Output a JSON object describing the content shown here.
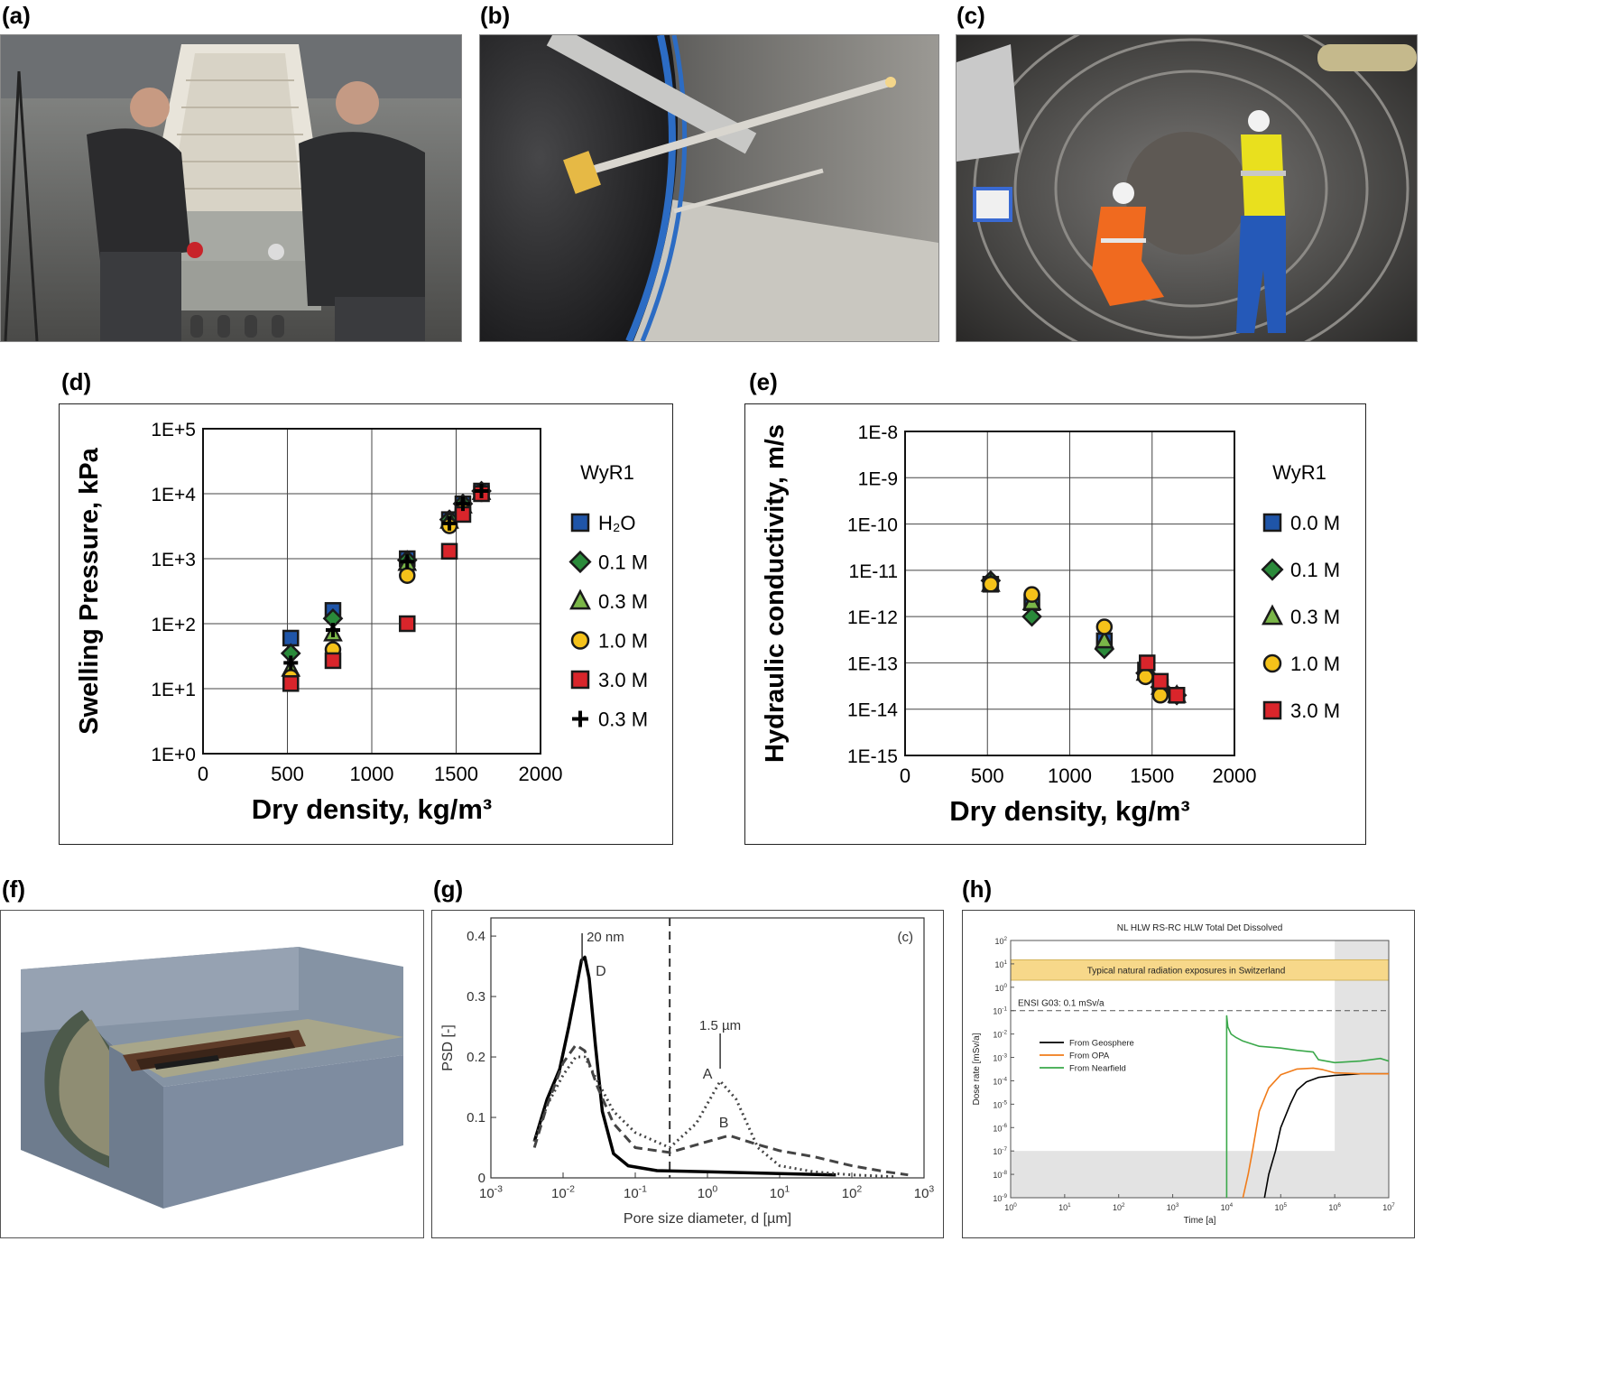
{
  "panels": {
    "a": "(a)",
    "b": "(b)",
    "c": "(c)",
    "d": "(d)",
    "e": "(e)",
    "f": "(f)",
    "g": "(g)",
    "h": "(h)"
  },
  "colors": {
    "blue": "#1f55a8",
    "green": "#2a8a3a",
    "olive": "#7ab648",
    "yellow": "#f5c21a",
    "red": "#d9252b",
    "black": "#000000",
    "orange": "#f07c1a",
    "nf_green": "#3aa84a",
    "band": "#f7d88a",
    "shade": "#e3e3e3"
  },
  "chart_data": [
    {
      "panel": "d",
      "type": "scatter",
      "xlabel": "Dry density, kg/m³",
      "ylabel": "Swelling Pressure, kPa",
      "xlim": [
        0,
        2000
      ],
      "ylim": [
        1,
        100000
      ],
      "yscale": "log",
      "xticks": [
        "0",
        "500",
        "1000",
        "1500",
        "2000"
      ],
      "yticks": [
        "1E+0",
        "1E+1",
        "1E+2",
        "1E+3",
        "1E+4",
        "1E+5"
      ],
      "grid": true,
      "legend_title": "WyR1",
      "legend_position": "right",
      "series": [
        {
          "name": "H₂O",
          "marker": "square",
          "color": "#1f55a8",
          "x": [
            520,
            770,
            1210,
            1460,
            1540,
            1650
          ],
          "y": [
            60,
            160,
            1000,
            4000,
            7000,
            11000
          ]
        },
        {
          "name": "0.1 M",
          "marker": "diamond",
          "color": "#2a8a3a",
          "x": [
            520,
            770,
            1210,
            1460,
            1540,
            1650
          ],
          "y": [
            35,
            120,
            950,
            4000,
            7000,
            11000
          ]
        },
        {
          "name": "0.3 M",
          "marker": "triangle",
          "color": "#7ab648",
          "x": [
            520,
            770,
            1210,
            1460,
            1540,
            1650
          ],
          "y": [
            20,
            70,
            850,
            3800,
            6500,
            10500
          ]
        },
        {
          "name": "1.0 M",
          "marker": "circle",
          "color": "#f5c21a",
          "x": [
            520,
            770,
            1210,
            1460,
            1540,
            1650
          ],
          "y": [
            15,
            40,
            550,
            3200,
            5500,
            10000
          ]
        },
        {
          "name": "3.0 M",
          "marker": "square",
          "color": "#d9252b",
          "x": [
            520,
            770,
            1210,
            1460,
            1540,
            1650
          ],
          "y": [
            12,
            27,
            100,
            1300,
            4800,
            10000
          ]
        },
        {
          "name": "0.3 M",
          "marker": "plus",
          "color": "#000000",
          "x": [
            520,
            770,
            1210,
            1460,
            1540,
            1650
          ],
          "y": [
            25,
            80,
            900,
            3500,
            7000,
            11000
          ]
        }
      ]
    },
    {
      "panel": "e",
      "type": "scatter",
      "xlabel": "Dry density, kg/m³",
      "ylabel": "Hydraulic conductivity, m/s",
      "xlim": [
        0,
        2000
      ],
      "ylim": [
        1e-15,
        1e-08
      ],
      "yscale": "log",
      "xticks": [
        "0",
        "500",
        "1000",
        "1500",
        "2000"
      ],
      "yticks": [
        "1E-8",
        "1E-9",
        "1E-10",
        "1E-11",
        "1E-12",
        "1E-13",
        "1E-14",
        "1E-15"
      ],
      "grid": true,
      "legend_title": "WyR1",
      "legend_position": "right",
      "series": [
        {
          "name": "0.0 M",
          "marker": "square",
          "color": "#1f55a8",
          "x": [
            520,
            770,
            1210,
            1460,
            1550,
            1650
          ],
          "y": [
            5e-12,
            2e-12,
            3e-13,
            7e-14,
            3e-14,
            2e-14
          ]
        },
        {
          "name": "0.1 M",
          "marker": "diamond",
          "color": "#2a8a3a",
          "x": [
            520,
            770,
            1210,
            1460,
            1550,
            1650
          ],
          "y": [
            6e-12,
            1e-12,
            2e-13,
            6e-14,
            3e-14,
            2e-14
          ]
        },
        {
          "name": "0.3 M",
          "marker": "triangle",
          "color": "#7ab648",
          "x": [
            520,
            770,
            1210,
            1460,
            1550,
            1650
          ],
          "y": [
            5e-12,
            2e-12,
            3e-13,
            6e-14,
            3e-14,
            2e-14
          ]
        },
        {
          "name": "1.0 M",
          "marker": "circle",
          "color": "#f5c21a",
          "x": [
            520,
            770,
            1210,
            1460,
            1550,
            1650
          ],
          "y": [
            5e-12,
            3e-12,
            6e-13,
            5e-14,
            2e-14,
            2e-14
          ]
        },
        {
          "name": "3.0 M",
          "marker": "square",
          "color": "#d9252b",
          "x": [
            1470,
            1550,
            1650
          ],
          "y": [
            1e-13,
            4e-14,
            2e-14
          ]
        }
      ]
    },
    {
      "panel": "g",
      "type": "line",
      "xlabel": "Pore size diameter, d [µm]",
      "ylabel": "PSD [-]",
      "xscale": "log",
      "xlim": [
        0.001,
        1000
      ],
      "ylim": [
        0,
        0.43
      ],
      "xticks_exp": [
        "-3",
        "-2",
        "-1",
        "0",
        "1",
        "2",
        "3"
      ],
      "yticks": [
        "0",
        "0.1",
        "0.2",
        "0.3",
        "0.4"
      ],
      "corner_label": "(c)",
      "annotations": [
        "20 nm",
        "1.5 µm",
        "D",
        "A",
        "B"
      ],
      "threshold_x": 0.3,
      "series": [
        {
          "name": "D",
          "style": "solid",
          "x": [
            0.004,
            0.006,
            0.009,
            0.012,
            0.015,
            0.018,
            0.02,
            0.023,
            0.028,
            0.035,
            0.05,
            0.08,
            0.2,
            1,
            10,
            60
          ],
          "y": [
            0.06,
            0.13,
            0.18,
            0.25,
            0.31,
            0.36,
            0.365,
            0.33,
            0.22,
            0.11,
            0.04,
            0.02,
            0.012,
            0.01,
            0.007,
            0.005
          ]
        },
        {
          "name": "A",
          "style": "dotted",
          "x": [
            0.004,
            0.006,
            0.01,
            0.015,
            0.02,
            0.03,
            0.05,
            0.1,
            0.3,
            0.7,
            1.5,
            2.5,
            5,
            10,
            30,
            100,
            400
          ],
          "y": [
            0.06,
            0.12,
            0.17,
            0.2,
            0.2,
            0.16,
            0.11,
            0.075,
            0.05,
            0.09,
            0.16,
            0.13,
            0.05,
            0.02,
            0.01,
            0.005,
            0.002
          ]
        },
        {
          "name": "B",
          "style": "dashed",
          "x": [
            0.004,
            0.006,
            0.01,
            0.015,
            0.02,
            0.03,
            0.05,
            0.1,
            0.3,
            1,
            2,
            5,
            10,
            30,
            100,
            300,
            600
          ],
          "y": [
            0.05,
            0.12,
            0.19,
            0.22,
            0.21,
            0.15,
            0.09,
            0.05,
            0.042,
            0.06,
            0.07,
            0.055,
            0.045,
            0.035,
            0.02,
            0.01,
            0.005
          ]
        }
      ]
    },
    {
      "panel": "h",
      "type": "line",
      "title": "NL HLW RS-RC HLW Total Det Dissolved",
      "xlabel": "Time [a]",
      "ylabel": "Dose rate [mSv/a]",
      "xscale": "log",
      "yscale": "log",
      "xlim": [
        1,
        10000000
      ],
      "ylim": [
        1e-09,
        100
      ],
      "xticks_exp": [
        "0",
        "1",
        "2",
        "3",
        "4",
        "5",
        "6",
        "7"
      ],
      "yticks_exp": [
        "2",
        "1",
        "0",
        "-1",
        "-2",
        "-3",
        "-4",
        "-5",
        "-6",
        "-7",
        "-8",
        "-9"
      ],
      "band_label": "Typical natural radiation exposures in Switzerland",
      "band_range": [
        2,
        15
      ],
      "limit_label": "ENSI G03: 0.1 mSv/a",
      "limit_value": 0.1,
      "shade_x_from": 1000000,
      "shade_y_below": 1e-07,
      "series": [
        {
          "name": "From Geosphere",
          "color": "#000000",
          "x": [
            50000,
            60000,
            80000,
            100000,
            150000,
            200000,
            300000,
            500000,
            1000000,
            3000000,
            10000000
          ],
          "y": [
            1e-09,
            1e-08,
            1e-07,
            1e-06,
            1e-05,
            4e-05,
            9e-05,
            0.00014,
            0.00017,
            0.0002,
            0.0002
          ]
        },
        {
          "name": "From OPA",
          "color": "#f07c1a",
          "x": [
            20000,
            25000,
            30000,
            40000,
            60000,
            100000,
            200000,
            400000,
            600000,
            1000000,
            3000000,
            10000000
          ],
          "y": [
            1e-09,
            1e-08,
            1e-07,
            5e-06,
            5e-05,
            0.00018,
            0.00032,
            0.00035,
            0.0003,
            0.00022,
            0.0002,
            0.0002
          ]
        },
        {
          "name": "From Nearfield",
          "color": "#3aa84a",
          "x": [
            10000,
            10000,
            10500,
            12000,
            15000,
            20000,
            40000,
            100000,
            200000,
            400000,
            500000,
            1000000,
            3000000,
            7000000,
            10000000
          ],
          "y": [
            1e-09,
            0.06,
            0.02,
            0.01,
            0.007,
            0.005,
            0.003,
            0.0025,
            0.002,
            0.0017,
            0.0008,
            0.0006,
            0.0007,
            0.0009,
            0.0007
          ]
        }
      ]
    }
  ]
}
